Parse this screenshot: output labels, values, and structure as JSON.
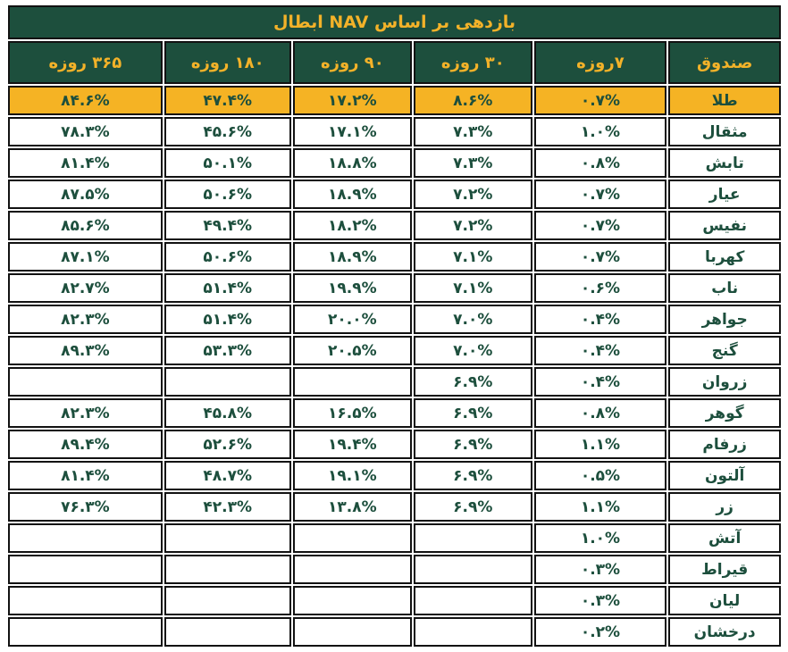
{
  "colors": {
    "dark_green": "#1d4f3d",
    "gold_text": "#f3b229",
    "highlight_row_bg": "#f5b324",
    "border": "#121212",
    "page_bg": "#ffffff"
  },
  "chart_data": {
    "type": "table",
    "title": "بازدهی بر اساس NAV ابطال",
    "columns": [
      "صندوق",
      "۷روزه",
      "۳۰ روزه",
      "۹۰ روزه",
      "۱۸۰ روزه",
      "۳۶۵ روزه"
    ],
    "legend_note": "first data row (طلا) highlighted in gold",
    "rows": [
      {
        "fund": "طلا",
        "r7": "۰.۷%",
        "r30": "۸.۶%",
        "r90": "۱۷.۲%",
        "r180": "۴۷.۴%",
        "r365": "۸۴.۶%",
        "highlight": true
      },
      {
        "fund": "مثقال",
        "r7": "۱.۰%",
        "r30": "۷.۳%",
        "r90": "۱۷.۱%",
        "r180": "۴۵.۶%",
        "r365": "۷۸.۳%"
      },
      {
        "fund": "تابش",
        "r7": "۰.۸%",
        "r30": "۷.۳%",
        "r90": "۱۸.۸%",
        "r180": "۵۰.۱%",
        "r365": "۸۱.۴%"
      },
      {
        "fund": "عیار",
        "r7": "۰.۷%",
        "r30": "۷.۲%",
        "r90": "۱۸.۹%",
        "r180": "۵۰.۶%",
        "r365": "۸۷.۵%"
      },
      {
        "fund": "نفیس",
        "r7": "۰.۷%",
        "r30": "۷.۲%",
        "r90": "۱۸.۲%",
        "r180": "۴۹.۴%",
        "r365": "۸۵.۶%"
      },
      {
        "fund": "کهربا",
        "r7": "۰.۷%",
        "r30": "۷.۱%",
        "r90": "۱۸.۹%",
        "r180": "۵۰.۶%",
        "r365": "۸۷.۱%"
      },
      {
        "fund": "ناب",
        "r7": "۰.۶%",
        "r30": "۷.۱%",
        "r90": "۱۹.۹%",
        "r180": "۵۱.۴%",
        "r365": "۸۲.۷%"
      },
      {
        "fund": "جواهر",
        "r7": "۰.۴%",
        "r30": "۷.۰%",
        "r90": "۲۰.۰%",
        "r180": "۵۱.۴%",
        "r365": "۸۲.۳%"
      },
      {
        "fund": "گنج",
        "r7": "۰.۴%",
        "r30": "۷.۰%",
        "r90": "۲۰.۵%",
        "r180": "۵۳.۳%",
        "r365": "۸۹.۳%"
      },
      {
        "fund": "زروان",
        "r7": "۰.۴%",
        "r30": "۶.۹%",
        "r90": "",
        "r180": "",
        "r365": ""
      },
      {
        "fund": "گوهر",
        "r7": "۰.۸%",
        "r30": "۶.۹%",
        "r90": "۱۶.۵%",
        "r180": "۴۵.۸%",
        "r365": "۸۲.۳%"
      },
      {
        "fund": "زرفام",
        "r7": "۱.۱%",
        "r30": "۶.۹%",
        "r90": "۱۹.۴%",
        "r180": "۵۲.۶%",
        "r365": "۸۹.۴%"
      },
      {
        "fund": "آلتون",
        "r7": "۰.۵%",
        "r30": "۶.۹%",
        "r90": "۱۹.۱%",
        "r180": "۴۸.۷%",
        "r365": "۸۱.۴%"
      },
      {
        "fund": "زر",
        "r7": "۱.۱%",
        "r30": "۶.۹%",
        "r90": "۱۳.۸%",
        "r180": "۴۲.۳%",
        "r365": "۷۶.۳%"
      },
      {
        "fund": "آتش",
        "r7": "۱.۰%",
        "r30": "",
        "r90": "",
        "r180": "",
        "r365": ""
      },
      {
        "fund": "قیراط",
        "r7": "۰.۳%",
        "r30": "",
        "r90": "",
        "r180": "",
        "r365": ""
      },
      {
        "fund": "لیان",
        "r7": "۰.۳%",
        "r30": "",
        "r90": "",
        "r180": "",
        "r365": ""
      },
      {
        "fund": "درخشان",
        "r7": "۰.۲%",
        "r30": "",
        "r90": "",
        "r180": "",
        "r365": ""
      }
    ]
  }
}
